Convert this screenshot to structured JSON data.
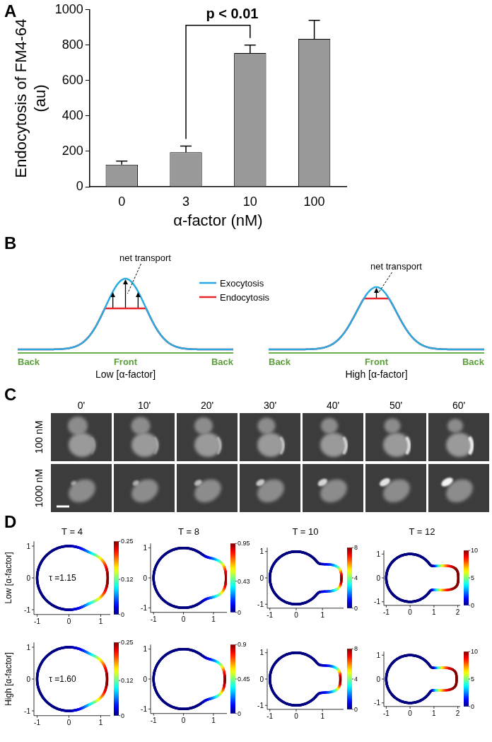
{
  "panel_labels": [
    "A",
    "B",
    "C",
    "D"
  ],
  "chart_data": {
    "type": "bar",
    "categories": [
      "0",
      "3",
      "10",
      "100"
    ],
    "values": [
      125,
      195,
      755,
      835
    ],
    "errors": [
      20,
      35,
      45,
      105
    ],
    "color": "#999999",
    "ylim": [
      0,
      1000
    ],
    "yticks": [
      0,
      200,
      400,
      600,
      800,
      1000
    ],
    "grid": false,
    "ylabel": [
      "Endocytosis of FM4-64",
      "(au)"
    ],
    "xlabel": "α-factor (nM)",
    "annotations": [
      {
        "text": "p < 0.01",
        "from": "3",
        "to": "10"
      }
    ]
  },
  "diagram_B": {
    "annotation": "net transport",
    "legend": [
      {
        "name": "Exocytosis",
        "color": "#29abe2"
      },
      {
        "name": "Endocytosis",
        "color": "#e8262c"
      }
    ],
    "axis_labels": [
      "Back",
      "Front",
      "Back"
    ],
    "panels": [
      "Low [α-factor]",
      "High [α-factor]"
    ]
  },
  "images_C": {
    "times": [
      "0'",
      "10'",
      "20'",
      "30'",
      "40'",
      "50'",
      "60'"
    ],
    "rows": [
      "100 nM",
      "1000 nM"
    ]
  },
  "simulation_D": {
    "times": [
      "T = 4",
      "T = 8",
      "T = 10",
      "T = 12"
    ],
    "rows": [
      {
        "label": "Low [α-factor]",
        "tau": "τ =1.15",
        "plots": [
          {
            "xlim": [
              -1.1,
              1.3
            ],
            "ylim": [
              -1.15,
              1.15
            ],
            "xticks": [
              -1,
              0,
              1
            ],
            "yticks": [
              -1,
              0,
              1
            ],
            "colorbar": {
              "range": [
                0,
                0.25
              ],
              "ticks": [
                0,
                0.12,
                0.25
              ]
            }
          },
          {
            "xlim": [
              -1.1,
              1.45
            ],
            "ylim": [
              -1.15,
              1.15
            ],
            "xticks": [
              -1,
              0,
              1
            ],
            "yticks": [
              -1,
              0,
              1
            ],
            "colorbar": {
              "range": [
                0,
                0.95
              ],
              "ticks": [
                0,
                0.43,
                0.95
              ]
            }
          },
          {
            "xlim": [
              -1.1,
              1.8
            ],
            "ylim": [
              -1.15,
              1.15
            ],
            "xticks": [
              -1,
              0,
              1
            ],
            "yticks": [
              -1,
              0,
              1
            ],
            "colorbar": {
              "range": [
                0,
                8
              ],
              "ticks": [
                0,
                4,
                8
              ]
            }
          },
          {
            "xlim": [
              -1.1,
              2.1
            ],
            "ylim": [
              -1.15,
              1.15
            ],
            "xticks": [
              -1,
              0,
              1,
              2
            ],
            "yticks": [
              -1,
              0,
              1
            ],
            "colorbar": {
              "range": [
                0,
                10
              ],
              "ticks": [
                0,
                5,
                10
              ]
            }
          }
        ]
      },
      {
        "label": "High [α-factor]",
        "tau": "τ =1.60",
        "plots": [
          {
            "xlim": [
              -1.1,
              1.3
            ],
            "ylim": [
              -1.15,
              1.15
            ],
            "xticks": [
              -1,
              0,
              1
            ],
            "yticks": [
              -1,
              0,
              1
            ],
            "colorbar": {
              "range": [
                0,
                0.25
              ],
              "ticks": [
                0,
                0.12,
                0.25
              ]
            }
          },
          {
            "xlim": [
              -1.1,
              1.45
            ],
            "ylim": [
              -1.15,
              1.15
            ],
            "xticks": [
              -1,
              0,
              1
            ],
            "yticks": [
              -1,
              0,
              1
            ],
            "colorbar": {
              "range": [
                0,
                0.9
              ],
              "ticks": [
                0,
                0.45,
                0.9
              ]
            }
          },
          {
            "xlim": [
              -1.1,
              1.8
            ],
            "ylim": [
              -1.15,
              1.15
            ],
            "xticks": [
              -1,
              0,
              1
            ],
            "yticks": [
              -1,
              0,
              1
            ],
            "colorbar": {
              "range": [
                0,
                8
              ],
              "ticks": [
                0,
                4,
                8
              ]
            }
          },
          {
            "xlim": [
              -1.1,
              2.1
            ],
            "ylim": [
              -1.15,
              1.15
            ],
            "xticks": [
              -1,
              0,
              1,
              2
            ],
            "yticks": [
              -1,
              0,
              1
            ],
            "colorbar": {
              "range": [
                0,
                10
              ],
              "ticks": [
                0,
                5,
                10
              ]
            }
          }
        ]
      }
    ]
  }
}
